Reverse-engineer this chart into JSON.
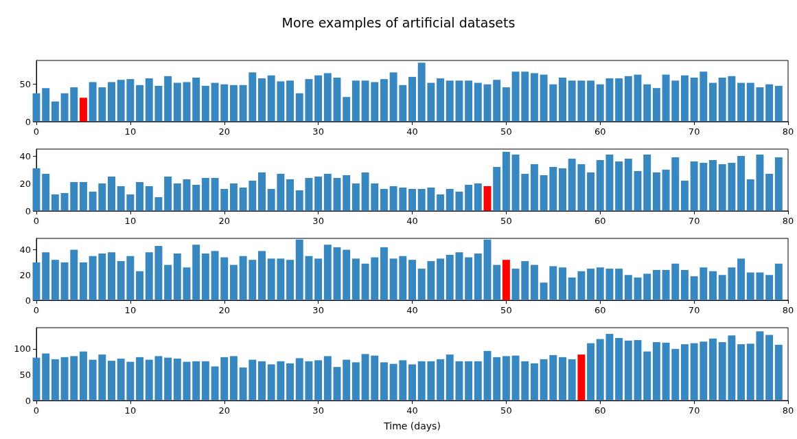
{
  "chart_data": [
    {
      "type": "bar",
      "title": "More examples of artificial datasets",
      "x": [
        0,
        1,
        2,
        3,
        4,
        5,
        6,
        7,
        8,
        9,
        10,
        11,
        12,
        13,
        14,
        15,
        16,
        17,
        18,
        19,
        20,
        21,
        22,
        23,
        24,
        25,
        26,
        27,
        28,
        29,
        30,
        31,
        32,
        33,
        34,
        35,
        36,
        37,
        38,
        39,
        40,
        41,
        42,
        43,
        44,
        45,
        46,
        47,
        48,
        49,
        50,
        51,
        52,
        53,
        54,
        55,
        56,
        57,
        58,
        59,
        60,
        61,
        62,
        63,
        64,
        65,
        66,
        67,
        68,
        69,
        70,
        71,
        72,
        73,
        74,
        75,
        76,
        77,
        78,
        79
      ],
      "values": [
        38,
        45,
        27,
        38,
        46,
        32,
        53,
        46,
        53,
        56,
        57,
        49,
        58,
        48,
        61,
        52,
        53,
        59,
        48,
        52,
        50,
        49,
        49,
        66,
        58,
        62,
        54,
        55,
        38,
        57,
        62,
        65,
        59,
        33,
        55,
        55,
        53,
        57,
        66,
        49,
        60,
        79,
        52,
        58,
        55,
        55,
        55,
        52,
        50,
        56,
        46,
        67,
        67,
        65,
        63,
        50,
        59,
        55,
        55,
        55,
        50,
        58,
        58,
        61,
        63,
        50,
        45,
        63,
        55,
        62,
        59,
        67,
        52,
        59,
        61,
        52,
        52,
        46,
        50,
        48
      ],
      "colors": [
        "#3787c0",
        "#3787c0",
        "#3787c0",
        "#3787c0",
        "#3787c0",
        "#ff0000",
        "#3787c0",
        "#3787c0",
        "#3787c0",
        "#3787c0",
        "#3787c0",
        "#3787c0",
        "#3787c0",
        "#3787c0",
        "#3787c0",
        "#3787c0",
        "#3787c0",
        "#3787c0",
        "#3787c0",
        "#3787c0",
        "#3787c0",
        "#3787c0",
        "#3787c0",
        "#3787c0",
        "#3787c0",
        "#3787c0",
        "#3787c0",
        "#3787c0",
        "#3787c0",
        "#3787c0",
        "#3787c0",
        "#3787c0",
        "#3787c0",
        "#3787c0",
        "#3787c0",
        "#3787c0",
        "#3787c0",
        "#3787c0",
        "#3787c0",
        "#3787c0",
        "#3787c0",
        "#3787c0",
        "#3787c0",
        "#3787c0",
        "#3787c0",
        "#3787c0",
        "#3787c0",
        "#3787c0",
        "#3787c0",
        "#3787c0",
        "#3787c0",
        "#3787c0",
        "#3787c0",
        "#3787c0",
        "#3787c0",
        "#3787c0",
        "#3787c0",
        "#3787c0",
        "#3787c0",
        "#3787c0",
        "#3787c0",
        "#3787c0",
        "#3787c0",
        "#3787c0",
        "#3787c0",
        "#3787c0",
        "#3787c0",
        "#3787c0",
        "#3787c0",
        "#3787c0",
        "#3787c0",
        "#3787c0",
        "#3787c0",
        "#3787c0",
        "#3787c0",
        "#3787c0",
        "#3787c0",
        "#3787c0",
        "#3787c0",
        "#3787c0"
      ],
      "xlim": [
        0,
        80
      ],
      "xticks": [
        0,
        10,
        20,
        30,
        40,
        50,
        60,
        70,
        80
      ],
      "ylim": [
        0,
        82
      ],
      "yticks": [
        0,
        50
      ]
    },
    {
      "type": "bar",
      "x": [
        0,
        1,
        2,
        3,
        4,
        5,
        6,
        7,
        8,
        9,
        10,
        11,
        12,
        13,
        14,
        15,
        16,
        17,
        18,
        19,
        20,
        21,
        22,
        23,
        24,
        25,
        26,
        27,
        28,
        29,
        30,
        31,
        32,
        33,
        34,
        35,
        36,
        37,
        38,
        39,
        40,
        41,
        42,
        43,
        44,
        45,
        46,
        47,
        48,
        49,
        50,
        51,
        52,
        53,
        54,
        55,
        56,
        57,
        58,
        59,
        60,
        61,
        62,
        63,
        64,
        65,
        66,
        67,
        68,
        69,
        70,
        71,
        72,
        73,
        74,
        75,
        76,
        77,
        78,
        79
      ],
      "values": [
        31,
        27,
        12,
        13,
        21,
        21,
        14,
        20,
        25,
        18,
        12,
        21,
        18,
        10,
        25,
        20,
        23,
        19,
        24,
        24,
        16,
        20,
        17,
        22,
        28,
        16,
        27,
        23,
        15,
        24,
        25,
        27,
        24,
        26,
        20,
        28,
        20,
        16,
        18,
        17,
        16,
        16,
        17,
        12,
        16,
        14,
        19,
        20,
        18,
        32,
        43,
        41,
        27,
        34,
        26,
        32,
        31,
        38,
        34,
        28,
        37,
        41,
        36,
        38,
        29,
        41,
        28,
        30,
        39,
        22,
        36,
        35,
        37,
        34,
        35,
        40,
        23,
        41,
        27,
        39
      ],
      "colors": [
        "#3787c0",
        "#3787c0",
        "#3787c0",
        "#3787c0",
        "#3787c0",
        "#3787c0",
        "#3787c0",
        "#3787c0",
        "#3787c0",
        "#3787c0",
        "#3787c0",
        "#3787c0",
        "#3787c0",
        "#3787c0",
        "#3787c0",
        "#3787c0",
        "#3787c0",
        "#3787c0",
        "#3787c0",
        "#3787c0",
        "#3787c0",
        "#3787c0",
        "#3787c0",
        "#3787c0",
        "#3787c0",
        "#3787c0",
        "#3787c0",
        "#3787c0",
        "#3787c0",
        "#3787c0",
        "#3787c0",
        "#3787c0",
        "#3787c0",
        "#3787c0",
        "#3787c0",
        "#3787c0",
        "#3787c0",
        "#3787c0",
        "#3787c0",
        "#3787c0",
        "#3787c0",
        "#3787c0",
        "#3787c0",
        "#3787c0",
        "#3787c0",
        "#3787c0",
        "#3787c0",
        "#3787c0",
        "#ff0000",
        "#3787c0",
        "#3787c0",
        "#3787c0",
        "#3787c0",
        "#3787c0",
        "#3787c0",
        "#3787c0",
        "#3787c0",
        "#3787c0",
        "#3787c0",
        "#3787c0",
        "#3787c0",
        "#3787c0",
        "#3787c0",
        "#3787c0",
        "#3787c0",
        "#3787c0",
        "#3787c0",
        "#3787c0",
        "#3787c0",
        "#3787c0",
        "#3787c0",
        "#3787c0",
        "#3787c0",
        "#3787c0",
        "#3787c0",
        "#3787c0",
        "#3787c0",
        "#3787c0",
        "#3787c0",
        "#3787c0"
      ],
      "xlim": [
        0,
        80
      ],
      "xticks": [
        0,
        10,
        20,
        30,
        40,
        50,
        60,
        70,
        80
      ],
      "ylim": [
        0,
        45
      ],
      "yticks": [
        0,
        20,
        40
      ]
    },
    {
      "type": "bar",
      "x": [
        0,
        1,
        2,
        3,
        4,
        5,
        6,
        7,
        8,
        9,
        10,
        11,
        12,
        13,
        14,
        15,
        16,
        17,
        18,
        19,
        20,
        21,
        22,
        23,
        24,
        25,
        26,
        27,
        28,
        29,
        30,
        31,
        32,
        33,
        34,
        35,
        36,
        37,
        38,
        39,
        40,
        41,
        42,
        43,
        44,
        45,
        46,
        47,
        48,
        49,
        50,
        51,
        52,
        53,
        54,
        55,
        56,
        57,
        58,
        59,
        60,
        61,
        62,
        63,
        64,
        65,
        66,
        67,
        68,
        69,
        70,
        71,
        72,
        73,
        74,
        75,
        76,
        77,
        78,
        79
      ],
      "values": [
        30,
        38,
        32,
        30,
        40,
        30,
        35,
        37,
        38,
        31,
        35,
        23,
        38,
        43,
        28,
        37,
        26,
        44,
        37,
        39,
        34,
        28,
        35,
        32,
        39,
        33,
        33,
        32,
        48,
        35,
        33,
        44,
        42,
        40,
        33,
        29,
        34,
        42,
        33,
        35,
        32,
        25,
        31,
        33,
        36,
        38,
        34,
        37,
        48,
        28,
        32,
        25,
        31,
        28,
        14,
        27,
        26,
        18,
        23,
        25,
        26,
        25,
        25,
        20,
        18,
        21,
        24,
        24,
        29,
        24,
        19,
        26,
        23,
        20,
        26,
        33,
        22,
        22,
        20,
        29
      ],
      "colors": [
        "#3787c0",
        "#3787c0",
        "#3787c0",
        "#3787c0",
        "#3787c0",
        "#3787c0",
        "#3787c0",
        "#3787c0",
        "#3787c0",
        "#3787c0",
        "#3787c0",
        "#3787c0",
        "#3787c0",
        "#3787c0",
        "#3787c0",
        "#3787c0",
        "#3787c0",
        "#3787c0",
        "#3787c0",
        "#3787c0",
        "#3787c0",
        "#3787c0",
        "#3787c0",
        "#3787c0",
        "#3787c0",
        "#3787c0",
        "#3787c0",
        "#3787c0",
        "#3787c0",
        "#3787c0",
        "#3787c0",
        "#3787c0",
        "#3787c0",
        "#3787c0",
        "#3787c0",
        "#3787c0",
        "#3787c0",
        "#3787c0",
        "#3787c0",
        "#3787c0",
        "#3787c0",
        "#3787c0",
        "#3787c0",
        "#3787c0",
        "#3787c0",
        "#3787c0",
        "#3787c0",
        "#3787c0",
        "#3787c0",
        "#3787c0",
        "#ff0000",
        "#3787c0",
        "#3787c0",
        "#3787c0",
        "#3787c0",
        "#3787c0",
        "#3787c0",
        "#3787c0",
        "#3787c0",
        "#3787c0",
        "#3787c0",
        "#3787c0",
        "#3787c0",
        "#3787c0",
        "#3787c0",
        "#3787c0",
        "#3787c0",
        "#3787c0",
        "#3787c0",
        "#3787c0",
        "#3787c0",
        "#3787c0",
        "#3787c0",
        "#3787c0",
        "#3787c0",
        "#3787c0",
        "#3787c0",
        "#3787c0",
        "#3787c0",
        "#3787c0"
      ],
      "xlim": [
        0,
        80
      ],
      "xticks": [
        0,
        10,
        20,
        30,
        40,
        50,
        60,
        70,
        80
      ],
      "ylim": [
        0,
        49
      ],
      "yticks": [
        0,
        20,
        40
      ]
    },
    {
      "type": "bar",
      "xlabel": "Time (days)",
      "x": [
        0,
        1,
        2,
        3,
        4,
        5,
        6,
        7,
        8,
        9,
        10,
        11,
        12,
        13,
        14,
        15,
        16,
        17,
        18,
        19,
        20,
        21,
        22,
        23,
        24,
        25,
        26,
        27,
        28,
        29,
        30,
        31,
        32,
        33,
        34,
        35,
        36,
        37,
        38,
        39,
        40,
        41,
        42,
        43,
        44,
        45,
        46,
        47,
        48,
        49,
        50,
        51,
        52,
        53,
        54,
        55,
        56,
        57,
        58,
        59,
        60,
        61,
        62,
        63,
        64,
        65,
        66,
        67,
        68,
        69,
        70,
        71,
        72,
        73,
        74,
        75,
        76,
        77,
        78,
        79
      ],
      "values": [
        83,
        91,
        80,
        84,
        86,
        95,
        79,
        89,
        77,
        81,
        75,
        84,
        79,
        86,
        83,
        81,
        75,
        76,
        76,
        66,
        84,
        86,
        64,
        79,
        76,
        70,
        76,
        72,
        82,
        76,
        78,
        86,
        65,
        79,
        74,
        90,
        87,
        74,
        71,
        78,
        70,
        76,
        76,
        80,
        89,
        76,
        76,
        76,
        96,
        84,
        86,
        87,
        76,
        72,
        80,
        88,
        84,
        80,
        89,
        111,
        119,
        129,
        121,
        116,
        117,
        95,
        113,
        112,
        100,
        109,
        111,
        114,
        120,
        113,
        126,
        109,
        110,
        134,
        127,
        108
      ],
      "colors": [
        "#3787c0",
        "#3787c0",
        "#3787c0",
        "#3787c0",
        "#3787c0",
        "#3787c0",
        "#3787c0",
        "#3787c0",
        "#3787c0",
        "#3787c0",
        "#3787c0",
        "#3787c0",
        "#3787c0",
        "#3787c0",
        "#3787c0",
        "#3787c0",
        "#3787c0",
        "#3787c0",
        "#3787c0",
        "#3787c0",
        "#3787c0",
        "#3787c0",
        "#3787c0",
        "#3787c0",
        "#3787c0",
        "#3787c0",
        "#3787c0",
        "#3787c0",
        "#3787c0",
        "#3787c0",
        "#3787c0",
        "#3787c0",
        "#3787c0",
        "#3787c0",
        "#3787c0",
        "#3787c0",
        "#3787c0",
        "#3787c0",
        "#3787c0",
        "#3787c0",
        "#3787c0",
        "#3787c0",
        "#3787c0",
        "#3787c0",
        "#3787c0",
        "#3787c0",
        "#3787c0",
        "#3787c0",
        "#3787c0",
        "#3787c0",
        "#3787c0",
        "#3787c0",
        "#3787c0",
        "#3787c0",
        "#3787c0",
        "#3787c0",
        "#3787c0",
        "#3787c0",
        "#ff0000",
        "#3787c0",
        "#3787c0",
        "#3787c0",
        "#3787c0",
        "#3787c0",
        "#3787c0",
        "#3787c0",
        "#3787c0",
        "#3787c0",
        "#3787c0",
        "#3787c0",
        "#3787c0",
        "#3787c0",
        "#3787c0",
        "#3787c0",
        "#3787c0",
        "#3787c0",
        "#3787c0",
        "#3787c0",
        "#3787c0",
        "#3787c0"
      ],
      "xlim": [
        0,
        80
      ],
      "xticks": [
        0,
        10,
        20,
        30,
        40,
        50,
        60,
        70,
        80
      ],
      "ylim": [
        0,
        141
      ],
      "yticks": [
        0,
        50,
        100
      ]
    }
  ]
}
